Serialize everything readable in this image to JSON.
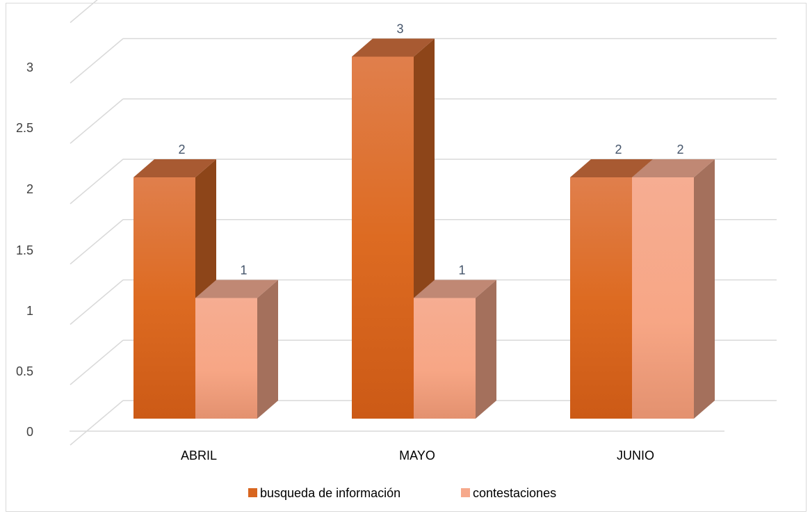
{
  "chart_data": {
    "type": "bar",
    "categories": [
      "ABRIL",
      "MAYO",
      "JUNIO"
    ],
    "series": [
      {
        "name": "busqueda de información",
        "values": [
          2,
          3,
          2
        ],
        "color": "#e0702a"
      },
      {
        "name": "contestaciones",
        "values": [
          1,
          1,
          2
        ],
        "color": "#f5a98c"
      }
    ],
    "ylim": [
      0,
      3
    ],
    "yticks": [
      "0",
      "0.5",
      "1",
      "1.5",
      "2",
      "2.5",
      "3"
    ],
    "data_labels": true,
    "grid": true,
    "three_d": true,
    "legend_position": "bottom"
  }
}
